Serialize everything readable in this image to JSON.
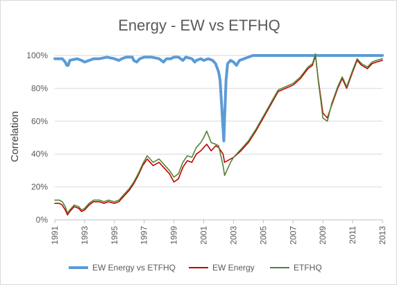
{
  "chart_data": {
    "type": "line",
    "title": "Energy - EW vs ETFHQ",
    "xlabel": "",
    "ylabel": "Correlation",
    "xlim": [
      1991,
      2013
    ],
    "ylim": [
      0,
      100
    ],
    "y_unit": "%",
    "x_ticks": [
      1991,
      1993,
      1995,
      1997,
      1999,
      2001,
      2003,
      2005,
      2007,
      2009,
      2011,
      2013
    ],
    "x_tick_labels": [
      "1991",
      "1993",
      "1995",
      "1997",
      "1999",
      "2001",
      "2003",
      "2005",
      "2007",
      "2009",
      "2011",
      "2013"
    ],
    "y_ticks": [
      0,
      20,
      40,
      60,
      80,
      100
    ],
    "y_tick_labels": [
      "0%",
      "20%",
      "40%",
      "60%",
      "80%",
      "100%"
    ],
    "grid": true,
    "legend_position": "bottom",
    "series": [
      {
        "name": "EW Energy vs ETFHQ",
        "color": "#5b9bd5",
        "points": [
          [
            1991,
            98
          ],
          [
            1991.5,
            98
          ],
          [
            1991.7,
            96
          ],
          [
            1991.8,
            94
          ],
          [
            1991.9,
            94
          ],
          [
            1992,
            97
          ],
          [
            1992.5,
            98
          ],
          [
            1992.8,
            97
          ],
          [
            1993.0,
            96
          ],
          [
            1993.3,
            97
          ],
          [
            1993.6,
            98
          ],
          [
            1994.0,
            98
          ],
          [
            1994.5,
            99
          ],
          [
            1995.0,
            98
          ],
          [
            1995.3,
            97
          ],
          [
            1995.5,
            98
          ],
          [
            1995.8,
            99
          ],
          [
            1996.2,
            99
          ],
          [
            1996.3,
            97
          ],
          [
            1996.5,
            96
          ],
          [
            1996.7,
            98
          ],
          [
            1997.0,
            99
          ],
          [
            1997.5,
            99
          ],
          [
            1998.0,
            98
          ],
          [
            1998.3,
            96
          ],
          [
            1998.5,
            98
          ],
          [
            1998.8,
            98
          ],
          [
            1999.0,
            99
          ],
          [
            1999.3,
            99
          ],
          [
            1999.6,
            97
          ],
          [
            1999.8,
            99
          ],
          [
            2000.2,
            98
          ],
          [
            2000.4,
            96
          ],
          [
            2000.5,
            97
          ],
          [
            2000.8,
            98
          ],
          [
            2001.0,
            97
          ],
          [
            2001.3,
            98
          ],
          [
            2001.6,
            97
          ],
          [
            2001.8,
            95
          ],
          [
            2002.0,
            90
          ],
          [
            2002.1,
            85
          ],
          [
            2002.2,
            70
          ],
          [
            2002.3,
            55
          ],
          [
            2002.35,
            48
          ],
          [
            2002.4,
            62
          ],
          [
            2002.5,
            85
          ],
          [
            2002.6,
            95
          ],
          [
            2002.8,
            97
          ],
          [
            2003.0,
            96
          ],
          [
            2003.2,
            94
          ],
          [
            2003.4,
            97
          ],
          [
            2003.7,
            98
          ],
          [
            2004.0,
            99
          ],
          [
            2004.3,
            100
          ],
          [
            2005.0,
            100
          ],
          [
            2007.0,
            100
          ],
          [
            2009.0,
            100
          ],
          [
            2011.0,
            100
          ],
          [
            2013.0,
            100
          ]
        ]
      },
      {
        "name": "EW Energy",
        "color": "#c00000",
        "points": [
          [
            1991,
            10
          ],
          [
            1991.3,
            10
          ],
          [
            1991.5,
            9
          ],
          [
            1991.7,
            6
          ],
          [
            1991.85,
            3
          ],
          [
            1992,
            5
          ],
          [
            1992.3,
            8
          ],
          [
            1992.6,
            7
          ],
          [
            1992.8,
            5
          ],
          [
            1993,
            6
          ],
          [
            1993.3,
            9
          ],
          [
            1993.6,
            11
          ],
          [
            1994,
            11
          ],
          [
            1994.3,
            10
          ],
          [
            1994.6,
            11
          ],
          [
            1995,
            10
          ],
          [
            1995.3,
            11
          ],
          [
            1995.6,
            14
          ],
          [
            1996,
            18
          ],
          [
            1996.3,
            22
          ],
          [
            1996.6,
            27
          ],
          [
            1996.9,
            33
          ],
          [
            1997.2,
            37
          ],
          [
            1997.6,
            33
          ],
          [
            1998,
            35
          ],
          [
            1998.3,
            32
          ],
          [
            1998.5,
            30
          ],
          [
            1998.7,
            28
          ],
          [
            1999,
            23
          ],
          [
            1999.3,
            25
          ],
          [
            1999.6,
            32
          ],
          [
            1999.9,
            36
          ],
          [
            2000.2,
            35
          ],
          [
            2000.5,
            40
          ],
          [
            2000.8,
            42
          ],
          [
            2001,
            44
          ],
          [
            2001.2,
            46
          ],
          [
            2001.5,
            42
          ],
          [
            2001.8,
            45
          ],
          [
            2002,
            44
          ],
          [
            2002.3,
            40
          ],
          [
            2002.4,
            35
          ],
          [
            2002.6,
            36
          ],
          [
            2002.8,
            37
          ],
          [
            2003,
            38
          ],
          [
            2003.5,
            42
          ],
          [
            2004,
            47
          ],
          [
            2004.5,
            54
          ],
          [
            2005,
            62
          ],
          [
            2005.5,
            70
          ],
          [
            2006,
            78
          ],
          [
            2006.5,
            80
          ],
          [
            2007,
            82
          ],
          [
            2007.5,
            86
          ],
          [
            2008,
            92
          ],
          [
            2008.3,
            94
          ],
          [
            2008.5,
            100
          ],
          [
            2008.7,
            85
          ],
          [
            2008.9,
            72
          ],
          [
            2009,
            65
          ],
          [
            2009.3,
            62
          ],
          [
            2009.6,
            70
          ],
          [
            2010,
            80
          ],
          [
            2010.3,
            86
          ],
          [
            2010.6,
            80
          ],
          [
            2011,
            90
          ],
          [
            2011.3,
            97
          ],
          [
            2011.6,
            94
          ],
          [
            2012,
            92
          ],
          [
            2012.3,
            95
          ],
          [
            2012.6,
            96
          ],
          [
            2013,
            97
          ]
        ]
      },
      {
        "name": "ETFHQ",
        "color": "#548235",
        "points": [
          [
            1991,
            12
          ],
          [
            1991.3,
            12
          ],
          [
            1991.5,
            11
          ],
          [
            1991.7,
            8
          ],
          [
            1991.85,
            4
          ],
          [
            1992,
            6
          ],
          [
            1992.3,
            9
          ],
          [
            1992.6,
            8
          ],
          [
            1992.8,
            6
          ],
          [
            1993,
            7
          ],
          [
            1993.3,
            10
          ],
          [
            1993.6,
            12
          ],
          [
            1994,
            12
          ],
          [
            1994.3,
            11
          ],
          [
            1994.6,
            12
          ],
          [
            1995,
            11
          ],
          [
            1995.3,
            12
          ],
          [
            1995.6,
            15
          ],
          [
            1996,
            19
          ],
          [
            1996.3,
            23
          ],
          [
            1996.6,
            28
          ],
          [
            1996.9,
            34
          ],
          [
            1997.2,
            39
          ],
          [
            1997.6,
            35
          ],
          [
            1998,
            37
          ],
          [
            1998.3,
            34
          ],
          [
            1998.5,
            32
          ],
          [
            1998.7,
            30
          ],
          [
            1999,
            26
          ],
          [
            1999.3,
            28
          ],
          [
            1999.6,
            35
          ],
          [
            1999.9,
            39
          ],
          [
            2000.2,
            38
          ],
          [
            2000.5,
            44
          ],
          [
            2000.8,
            47
          ],
          [
            2001,
            50
          ],
          [
            2001.2,
            54
          ],
          [
            2001.5,
            47
          ],
          [
            2001.8,
            46
          ],
          [
            2002,
            45
          ],
          [
            2002.3,
            33
          ],
          [
            2002.4,
            27
          ],
          [
            2002.6,
            31
          ],
          [
            2002.8,
            35
          ],
          [
            2003,
            38
          ],
          [
            2003.5,
            43
          ],
          [
            2004,
            48
          ],
          [
            2004.5,
            55
          ],
          [
            2005,
            63
          ],
          [
            2005.5,
            71
          ],
          [
            2006,
            79
          ],
          [
            2006.5,
            81
          ],
          [
            2007,
            83
          ],
          [
            2007.5,
            87
          ],
          [
            2008,
            93
          ],
          [
            2008.3,
            95
          ],
          [
            2008.5,
            101
          ],
          [
            2008.7,
            84
          ],
          [
            2008.9,
            70
          ],
          [
            2009,
            62
          ],
          [
            2009.3,
            60
          ],
          [
            2009.6,
            71
          ],
          [
            2010,
            81
          ],
          [
            2010.3,
            87
          ],
          [
            2010.6,
            81
          ],
          [
            2011,
            91
          ],
          [
            2011.3,
            98
          ],
          [
            2011.6,
            95
          ],
          [
            2012,
            93
          ],
          [
            2012.3,
            96
          ],
          [
            2012.6,
            97
          ],
          [
            2013,
            98
          ]
        ]
      }
    ]
  }
}
